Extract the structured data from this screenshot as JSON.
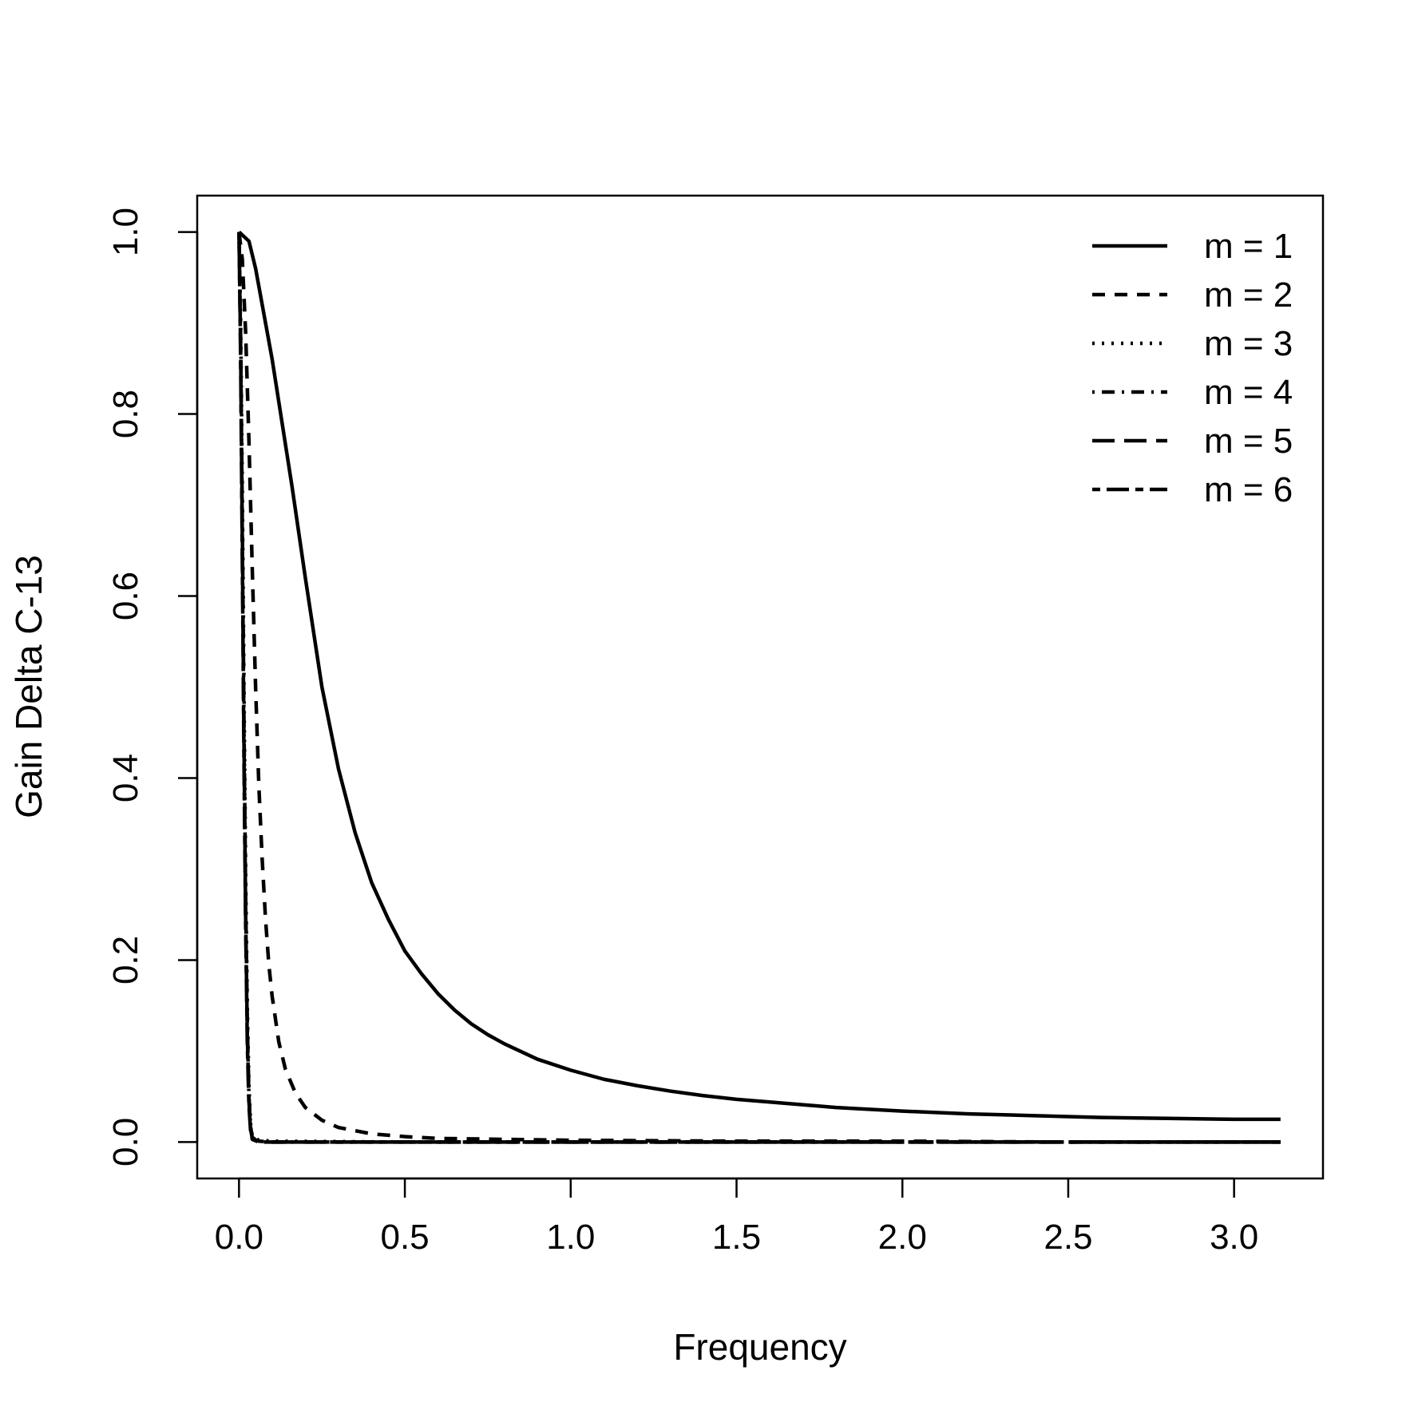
{
  "chart_data": {
    "type": "line",
    "title": "",
    "xlabel": "Frequency",
    "ylabel": "Gain Delta C-13",
    "xlim": [
      -0.126,
      3.268
    ],
    "ylim": [
      -0.04,
      1.04
    ],
    "x_ticks": [
      0.0,
      0.5,
      1.0,
      1.5,
      2.0,
      2.5,
      3.0
    ],
    "x_tick_labels": [
      "0.0",
      "0.5",
      "1.0",
      "1.5",
      "2.0",
      "2.5",
      "3.0"
    ],
    "y_ticks": [
      0.0,
      0.2,
      0.4,
      0.6,
      0.8,
      1.0
    ],
    "y_tick_labels": [
      "0.0",
      "0.2",
      "0.4",
      "0.6",
      "0.8",
      "1.0"
    ],
    "grid": false,
    "legend_position": "top-right",
    "series": [
      {
        "name": "m = 1",
        "line_style": "solid",
        "color": "#000000",
        "x": [
          0.0,
          0.03,
          0.05,
          0.07,
          0.1,
          0.13,
          0.16,
          0.2,
          0.25,
          0.3,
          0.35,
          0.4,
          0.45,
          0.5,
          0.55,
          0.6,
          0.65,
          0.7,
          0.75,
          0.8,
          0.9,
          1.0,
          1.1,
          1.2,
          1.3,
          1.4,
          1.5,
          1.6,
          1.8,
          2.0,
          2.2,
          2.4,
          2.6,
          2.8,
          3.0,
          3.14
        ],
        "y": [
          1.0,
          0.99,
          0.96,
          0.92,
          0.86,
          0.79,
          0.72,
          0.62,
          0.5,
          0.41,
          0.34,
          0.285,
          0.245,
          0.21,
          0.185,
          0.163,
          0.145,
          0.13,
          0.118,
          0.108,
          0.091,
          0.079,
          0.069,
          0.062,
          0.056,
          0.051,
          0.047,
          0.044,
          0.038,
          0.034,
          0.031,
          0.029,
          0.027,
          0.026,
          0.025,
          0.025
        ]
      },
      {
        "name": "m = 2",
        "line_style": "dashed",
        "color": "#000000",
        "x": [
          0.0,
          0.01,
          0.02,
          0.03,
          0.04,
          0.05,
          0.06,
          0.07,
          0.08,
          0.09,
          0.1,
          0.12,
          0.14,
          0.17,
          0.2,
          0.25,
          0.3,
          0.4,
          0.5,
          0.6,
          0.8,
          1.0,
          1.5,
          2.0,
          2.5,
          3.0,
          3.14
        ],
        "y": [
          1.0,
          0.97,
          0.89,
          0.77,
          0.63,
          0.5,
          0.39,
          0.31,
          0.245,
          0.195,
          0.16,
          0.11,
          0.08,
          0.054,
          0.038,
          0.024,
          0.016,
          0.009,
          0.006,
          0.004,
          0.003,
          0.002,
          0.001,
          0.001,
          0.0,
          0.0,
          0.0
        ]
      },
      {
        "name": "m = 3",
        "line_style": "dotted",
        "color": "#000000",
        "x": [
          0.0,
          0.005,
          0.01,
          0.015,
          0.02,
          0.025,
          0.03,
          0.035,
          0.04,
          0.06,
          0.1,
          0.5,
          1.0,
          2.0,
          3.14
        ],
        "y": [
          1.0,
          0.9,
          0.72,
          0.5,
          0.3,
          0.15,
          0.06,
          0.02,
          0.006,
          0.002,
          0.001,
          0.0,
          0.0,
          0.0,
          0.0
        ]
      },
      {
        "name": "m = 4",
        "line_style": "dotdash",
        "color": "#000000",
        "x": [
          0.0,
          0.005,
          0.01,
          0.015,
          0.02,
          0.025,
          0.03,
          0.035,
          0.04,
          0.06,
          0.1,
          0.5,
          1.0,
          2.0,
          3.14
        ],
        "y": [
          1.0,
          0.88,
          0.68,
          0.46,
          0.27,
          0.13,
          0.05,
          0.017,
          0.005,
          0.001,
          0.0,
          0.0,
          0.0,
          0.0,
          0.0
        ]
      },
      {
        "name": "m = 5",
        "line_style": "longdash",
        "color": "#000000",
        "x": [
          0.0,
          0.005,
          0.01,
          0.015,
          0.02,
          0.025,
          0.03,
          0.035,
          0.04,
          0.06,
          0.1,
          0.5,
          1.0,
          2.0,
          3.14
        ],
        "y": [
          1.0,
          0.87,
          0.66,
          0.44,
          0.25,
          0.12,
          0.045,
          0.014,
          0.004,
          0.001,
          0.0,
          0.0,
          0.0,
          0.0,
          0.0
        ]
      },
      {
        "name": "m = 6",
        "line_style": "twodash",
        "color": "#000000",
        "x": [
          0.0,
          0.005,
          0.01,
          0.015,
          0.02,
          0.025,
          0.03,
          0.035,
          0.04,
          0.06,
          0.1,
          0.5,
          1.0,
          2.0,
          3.14
        ],
        "y": [
          1.0,
          0.86,
          0.64,
          0.42,
          0.24,
          0.11,
          0.04,
          0.012,
          0.003,
          0.0,
          0.0,
          0.0,
          0.0,
          0.0,
          0.0
        ]
      }
    ]
  }
}
